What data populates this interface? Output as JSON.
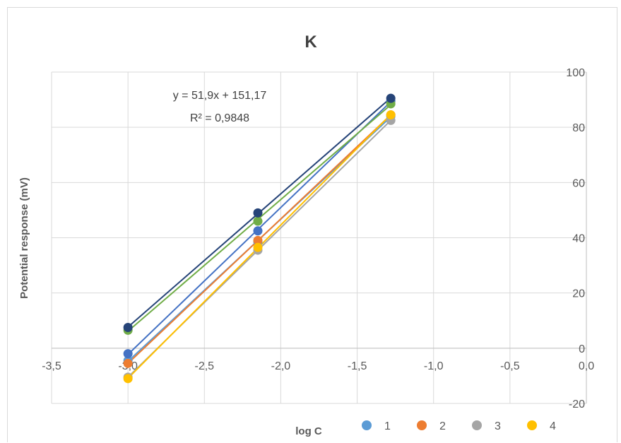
{
  "chart_data": {
    "type": "scatter",
    "title": "K",
    "xlabel": "log C",
    "ylabel": "Potential response (mV)",
    "xlim": [
      -3.5,
      0.0
    ],
    "ylim": [
      -20,
      100
    ],
    "x_ticks": [
      "-3,5",
      "-3,0",
      "-2,5",
      "-2,0",
      "-1,5",
      "-1,0",
      "-0,5",
      "0,0"
    ],
    "y_ticks": [
      "-20",
      "0",
      "20",
      "40",
      "60",
      "80",
      "100"
    ],
    "x": [
      -3.0,
      -2.15,
      -1.28
    ],
    "series": [
      {
        "name": "1",
        "color": "#5B9BD5",
        "values": [
          -4.5,
          38.5,
          84.0
        ],
        "trendline": true
      },
      {
        "name": "2",
        "color": "#ED7D31",
        "values": [
          -5.5,
          39.0,
          84.5
        ],
        "trendline": true
      },
      {
        "name": "3",
        "color": "#A5A5A5",
        "values": [
          -10.5,
          35.5,
          82.5
        ],
        "trendline": true
      },
      {
        "name": "4",
        "color": "#FFC000",
        "values": [
          -11.0,
          36.5,
          84.5
        ],
        "trendline": true
      },
      {
        "color": "#4472C4",
        "values": [
          -2.0,
          42.5,
          89.5
        ],
        "trendline": true
      },
      {
        "color": "#70AD47",
        "values": [
          6.5,
          46.0,
          88.5
        ],
        "trendline": true
      },
      {
        "color": "#264478",
        "values": [
          7.5,
          49.0,
          90.5
        ],
        "trendline": true
      }
    ],
    "annotation": {
      "equation": "y = 51,9x + 151,17",
      "r2": "R² = 0,9848"
    },
    "legend": {
      "position": "bottom-right",
      "entries": [
        "1",
        "2",
        "3",
        "4"
      ]
    },
    "grid": true
  }
}
